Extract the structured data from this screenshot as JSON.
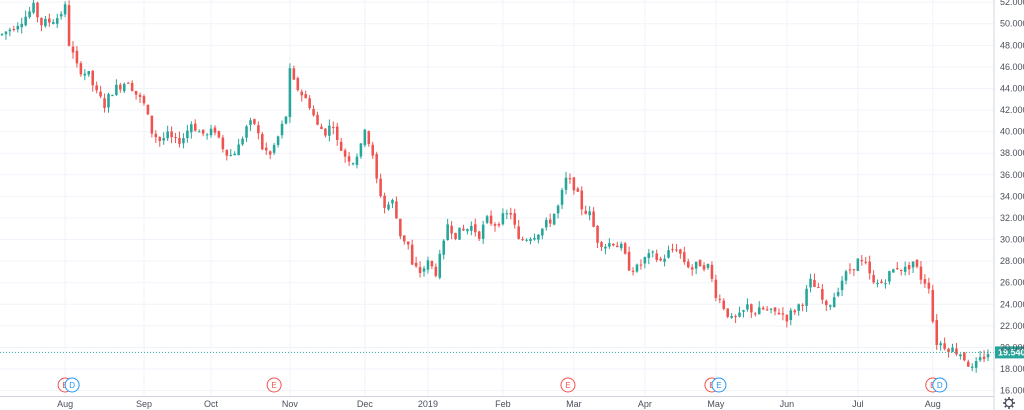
{
  "chart_data": {
    "type": "candlestick",
    "title": "",
    "xlabel": "",
    "ylabel": "",
    "ylim": [
      15.5,
      52.2
    ],
    "xlim": [
      0,
      250
    ],
    "y_ticks": [
      "52.000",
      "50.000",
      "48.000",
      "46.000",
      "44.000",
      "42.000",
      "40.000",
      "38.000",
      "36.000",
      "34.000",
      "32.000",
      "30.000",
      "28.000",
      "26.000",
      "24.000",
      "22.000",
      "20.000",
      "18.000",
      "16.000"
    ],
    "y_tick_values": [
      52,
      50,
      48,
      46,
      44,
      42,
      40,
      38,
      36,
      34,
      32,
      30,
      28,
      26,
      24,
      22,
      20,
      18,
      16
    ],
    "x_ticks": [
      {
        "label": "Aug",
        "x": 16
      },
      {
        "label": "Sep",
        "x": 36
      },
      {
        "label": "Oct",
        "x": 53
      },
      {
        "label": "Nov",
        "x": 73
      },
      {
        "label": "Dec",
        "x": 92
      },
      {
        "label": "2019",
        "x": 108
      },
      {
        "label": "Feb",
        "x": 127
      },
      {
        "label": "Mar",
        "x": 145
      },
      {
        "label": "Apr",
        "x": 163
      },
      {
        "label": "May",
        "x": 181
      },
      {
        "label": "Jun",
        "x": 199
      },
      {
        "label": "Jul",
        "x": 217
      },
      {
        "label": "Aug",
        "x": 236
      }
    ],
    "grid": true,
    "current_price": 19.54,
    "current_price_label": "19.540",
    "up_color": "#26a69a",
    "down_color": "#ef5350",
    "path": [
      [
        0,
        49.0
      ],
      [
        3,
        49.8
      ],
      [
        6,
        50.7
      ],
      [
        8,
        51.5
      ],
      [
        10,
        50.0
      ],
      [
        12,
        50.2
      ],
      [
        14,
        50.6
      ],
      [
        16,
        51.5
      ],
      [
        17,
        48.2
      ],
      [
        19,
        46.0
      ],
      [
        22,
        45.2
      ],
      [
        24,
        43.5
      ],
      [
        26,
        42.5
      ],
      [
        28,
        43.8
      ],
      [
        30,
        44.3
      ],
      [
        32,
        44.8
      ],
      [
        34,
        43.5
      ],
      [
        36,
        42.5
      ],
      [
        38,
        40.0
      ],
      [
        40,
        39.2
      ],
      [
        42,
        39.6
      ],
      [
        44,
        39.0
      ],
      [
        46,
        39.5
      ],
      [
        48,
        40.8
      ],
      [
        50,
        40.0
      ],
      [
        52,
        39.6
      ],
      [
        54,
        40.2
      ],
      [
        56,
        38.6
      ],
      [
        58,
        37.8
      ],
      [
        60,
        38.6
      ],
      [
        62,
        40.5
      ],
      [
        64,
        40.8
      ],
      [
        66,
        38.5
      ],
      [
        68,
        37.8
      ],
      [
        70,
        39.5
      ],
      [
        72,
        41.5
      ],
      [
        73,
        45.5
      ],
      [
        74,
        44.5
      ],
      [
        76,
        43.5
      ],
      [
        78,
        42.5
      ],
      [
        80,
        40.5
      ],
      [
        82,
        40.0
      ],
      [
        84,
        40.8
      ],
      [
        85,
        39.0
      ],
      [
        87,
        37.8
      ],
      [
        89,
        37.3
      ],
      [
        91,
        38.5
      ],
      [
        92,
        40.5
      ],
      [
        94,
        37.5
      ],
      [
        95,
        35.5
      ],
      [
        97,
        33.0
      ],
      [
        99,
        33.5
      ],
      [
        101,
        30.5
      ],
      [
        103,
        29.5
      ],
      [
        104,
        27.5
      ],
      [
        106,
        27.0
      ],
      [
        108,
        27.8
      ],
      [
        110,
        27.0
      ],
      [
        112,
        29.5
      ],
      [
        113,
        31.5
      ],
      [
        115,
        30.5
      ],
      [
        117,
        30.8
      ],
      [
        119,
        31.2
      ],
      [
        121,
        30.5
      ],
      [
        123,
        31.8
      ],
      [
        125,
        31.5
      ],
      [
        127,
        32.0
      ],
      [
        129,
        32.5
      ],
      [
        131,
        29.8
      ],
      [
        133,
        30.2
      ],
      [
        135,
        30.5
      ],
      [
        137,
        31.0
      ],
      [
        139,
        31.8
      ],
      [
        141,
        33.0
      ],
      [
        143,
        35.5
      ],
      [
        145,
        35.0
      ],
      [
        147,
        33.0
      ],
      [
        149,
        32.3
      ],
      [
        151,
        30.0
      ],
      [
        153,
        29.5
      ],
      [
        155,
        29.8
      ],
      [
        157,
        29.2
      ],
      [
        159,
        27.5
      ],
      [
        161,
        27.3
      ],
      [
        163,
        28.2
      ],
      [
        165,
        28.5
      ],
      [
        167,
        28.0
      ],
      [
        169,
        28.8
      ],
      [
        171,
        29.3
      ],
      [
        173,
        28.0
      ],
      [
        175,
        27.3
      ],
      [
        177,
        27.8
      ],
      [
        179,
        27.5
      ],
      [
        181,
        25.0
      ],
      [
        183,
        23.8
      ],
      [
        185,
        22.5
      ],
      [
        187,
        22.8
      ],
      [
        189,
        23.8
      ],
      [
        191,
        23.2
      ],
      [
        193,
        23.5
      ],
      [
        195,
        23.2
      ],
      [
        197,
        23.3
      ],
      [
        199,
        22.8
      ],
      [
        201,
        23.5
      ],
      [
        203,
        24.3
      ],
      [
        205,
        26.0
      ],
      [
        207,
        25.2
      ],
      [
        209,
        23.5
      ],
      [
        211,
        24.8
      ],
      [
        213,
        26.3
      ],
      [
        215,
        27.2
      ],
      [
        217,
        28.0
      ],
      [
        219,
        27.5
      ],
      [
        221,
        25.8
      ],
      [
        223,
        26.0
      ],
      [
        225,
        26.8
      ],
      [
        227,
        27.5
      ],
      [
        229,
        27.2
      ],
      [
        231,
        28.0
      ],
      [
        233,
        26.5
      ],
      [
        235,
        25.8
      ],
      [
        236,
        22.5
      ],
      [
        237,
        20.5
      ],
      [
        239,
        20.2
      ],
      [
        241,
        19.8
      ],
      [
        243,
        19.5
      ],
      [
        245,
        18.5
      ],
      [
        246,
        17.9
      ],
      [
        248,
        18.8
      ],
      [
        250,
        19.54
      ]
    ],
    "candles": [],
    "markers": [
      {
        "x": 16,
        "labels": [
          "E",
          "D"
        ],
        "colors": [
          "#ef5350",
          "#2196f3"
        ]
      },
      {
        "x": 69,
        "labels": [
          "E"
        ],
        "colors": [
          "#ef5350"
        ]
      },
      {
        "x": 143.5,
        "labels": [
          "E"
        ],
        "colors": [
          "#ef5350"
        ]
      },
      {
        "x": 180,
        "labels": [
          "E",
          "E"
        ],
        "colors": [
          "#ef5350",
          "#2196f3"
        ]
      },
      {
        "x": 236,
        "labels": [
          "E",
          "D"
        ],
        "colors": [
          "#ef5350",
          "#2196f3"
        ]
      }
    ]
  },
  "toolbar": {
    "settings_icon": "gear-icon"
  }
}
